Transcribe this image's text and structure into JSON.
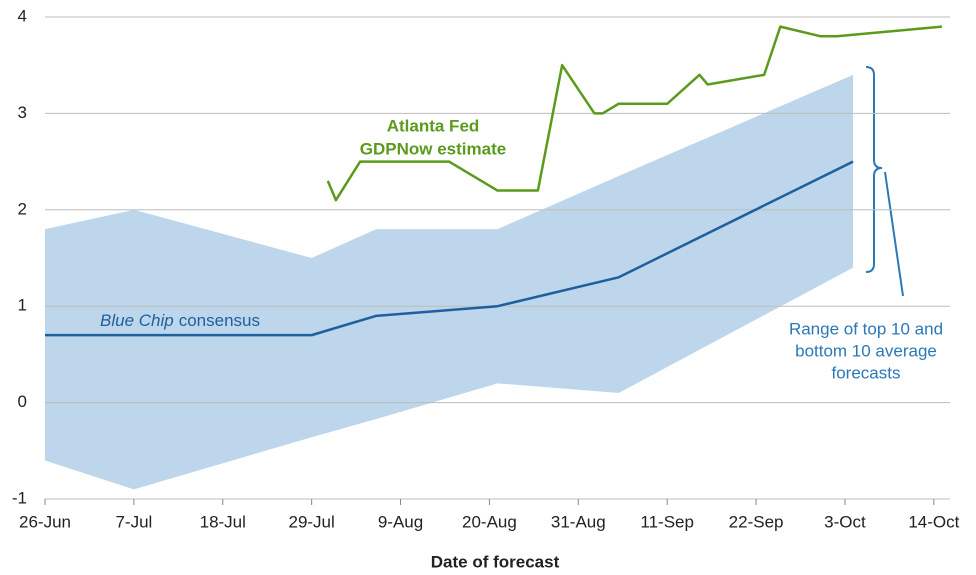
{
  "chart_data": {
    "type": "line",
    "x_label": "Date of forecast",
    "xlim": [
      "26-Jun",
      "16-Oct"
    ],
    "xticks": [
      "26-Jun",
      "7-Jul",
      "18-Jul",
      "29-Jul",
      "9-Aug",
      "20-Aug",
      "31-Aug",
      "11-Sep",
      "22-Sep",
      "3-Oct",
      "14-Oct"
    ],
    "ylim": [
      -1,
      4
    ],
    "yticks": [
      -1,
      0,
      1,
      2,
      3,
      4
    ],
    "grid": true,
    "series": [
      {
        "label": [
          "Atlanta Fed",
          "GDPNow estimate"
        ],
        "color": "#5b9a1c",
        "x": [
          "31-Jul",
          "1-Aug",
          "4-Aug",
          "15-Aug",
          "21-Aug",
          "26-Aug",
          "29-Aug",
          "2-Sep",
          "3-Sep",
          "5-Sep",
          "11-Sep",
          "15-Sep",
          "16-Sep",
          "23-Sep",
          "25-Sep",
          "30-Sep",
          "2-Oct",
          "15-Oct"
        ],
        "values": [
          2.3,
          2.1,
          2.5,
          2.5,
          2.2,
          2.2,
          3.5,
          3.0,
          3.0,
          3.1,
          3.1,
          3.4,
          3.3,
          3.4,
          3.9,
          3.8,
          3.8,
          3.9
        ]
      },
      {
        "label": [
          "Blue Chip",
          "consensus"
        ],
        "color": "#1f5f9e",
        "x": [
          "26-Jun",
          "29-Jul",
          "6-Aug",
          "21-Aug",
          "5-Sep",
          "4-Oct"
        ],
        "values": [
          0.7,
          0.7,
          0.9,
          1.0,
          1.3,
          2.5
        ]
      }
    ],
    "band": {
      "label": [
        "Range of top 10 and",
        "bottom 10 average",
        "forecasts"
      ],
      "color": "#bdd6eb",
      "x": [
        "26-Jun",
        "7-Jul",
        "29-Jul",
        "6-Aug",
        "21-Aug",
        "5-Sep",
        "4-Oct"
      ],
      "high": [
        1.8,
        2.0,
        1.5,
        1.8,
        1.8,
        2.35,
        3.4
      ],
      "low": [
        -0.6,
        -0.9,
        -0.36,
        -0.17,
        0.2,
        0.1,
        1.4
      ]
    }
  }
}
